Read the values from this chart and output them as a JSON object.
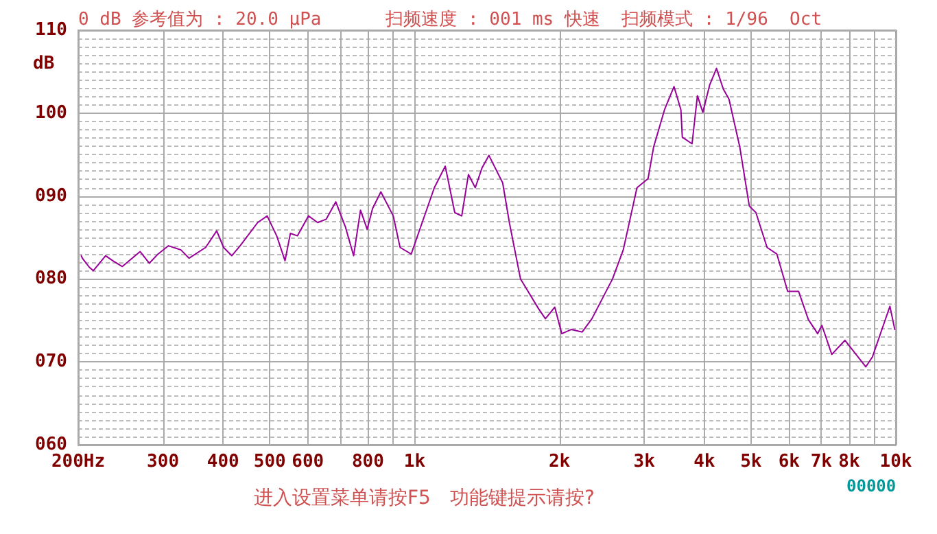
{
  "chart_data": {
    "type": "line",
    "title": "0 dB 参考值为 : 20.0 μPa      扫频速度 : 001 ms 快速  扫频模式 : 1/96  Oct",
    "ylabel": "dB",
    "annotations": [
      "进入设置菜单请按F5　功能键提示请按?",
      "00000"
    ],
    "log": "x",
    "grid": true,
    "marker": "none",
    "line_style": "solid",
    "xlim": [
      200,
      10000
    ],
    "xticks": [
      {
        "value": 200,
        "label": "200Hz"
      },
      300,
      400,
      500,
      600,
      {
        "value": 700,
        "label": null
      },
      800,
      {
        "value": 900,
        "label": null
      },
      {
        "value": 1000,
        "label": "1k"
      },
      {
        "value": 2000,
        "label": "2k"
      },
      {
        "value": 3000,
        "label": "3k"
      },
      {
        "value": 4000,
        "label": "4k"
      },
      {
        "value": 5000,
        "label": "5k"
      },
      {
        "value": 6000,
        "label": "6k"
      },
      {
        "value": 7000,
        "label": "7k"
      },
      {
        "value": 8000,
        "label": "8k"
      },
      {
        "value": 9000,
        "label": null
      },
      {
        "value": 10000,
        "label": "10k"
      }
    ],
    "ylim": [
      60,
      110
    ],
    "yticks": [
      {
        "value": 60,
        "label": "060"
      },
      {
        "value": 70,
        "label": "070"
      },
      {
        "value": 80,
        "label": "080"
      },
      {
        "value": 90,
        "label": "090"
      },
      {
        "value": 100,
        "label": "100"
      },
      {
        "value": 110,
        "label": "110"
      }
    ],
    "series": [
      {
        "color": "#990099",
        "x": [
          203,
          204,
          211,
          215,
          228,
          236,
          247,
          269,
          281,
          293,
          308,
          327,
          340,
          368,
          388,
          401,
          417,
          434,
          472,
          494,
          517,
          538,
          552,
          571,
          602,
          629,
          655,
          686,
          718,
          747,
          772,
          797,
          818,
          851,
          903,
          933,
          984,
          1037,
          1099,
          1158,
          1212,
          1253,
          1294,
          1337,
          1381,
          1427,
          1524,
          1575,
          1660,
          1810,
          1870,
          1956,
          2022,
          2116,
          2230,
          2336,
          2578,
          2714,
          2898,
          3056,
          3138,
          3306,
          3460,
          3576,
          3600,
          3772,
          3870,
          3972,
          4104,
          4240,
          4380,
          4500,
          4740,
          4960,
          5120,
          5400,
          5660,
          5960,
          6280,
          6580,
          6880,
          7020,
          7360,
          7840,
          8660,
          8940,
          9720,
          9950
        ],
        "values": [
          82.8,
          82.5,
          81.4,
          81,
          82.8,
          82.2,
          81.5,
          83.3,
          81.9,
          83,
          84,
          83.5,
          82.5,
          83.8,
          85.8,
          83.8,
          82.8,
          84,
          86.8,
          87.6,
          85.2,
          82.2,
          85.5,
          85.2,
          87.6,
          86.8,
          87.2,
          89.3,
          86.3,
          82.8,
          88.3,
          86,
          88.5,
          90.5,
          87.6,
          83.8,
          83,
          86.8,
          91,
          93.6,
          88,
          87.6,
          92.6,
          91,
          93.4,
          94.9,
          91.6,
          86.7,
          80,
          76.4,
          75.2,
          76.6,
          73.4,
          73.9,
          73.6,
          75.2,
          80,
          83.5,
          91,
          92.1,
          95.9,
          100.4,
          103.2,
          100.4,
          97.1,
          96.3,
          102.1,
          100.1,
          103.4,
          105.4,
          102.9,
          101.7,
          95.9,
          88.8,
          88,
          83.8,
          83,
          78.5,
          78.5,
          75.1,
          73.4,
          74.4,
          70.9,
          72.6,
          69.4,
          70.6,
          76.7,
          73.9
        ]
      }
    ]
  }
}
